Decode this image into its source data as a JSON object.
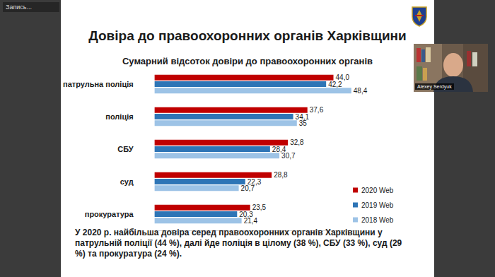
{
  "chart_data": {
    "type": "bar",
    "orientation": "horizontal",
    "title": "Довіра до правоохоронних органів Харківщини",
    "subtitle": "Сумарний відсоток довіри до правоохоронних органів",
    "annotations": [
      "У 2020 р. найбільша довіра серед правоохоронних органів Харківщини у патрульній поліції (44 %), далі йде поліція в цілому (38 %), СБУ (33 %), суд (29 %) та прокуратура (24 %)."
    ],
    "categories": [
      "патрульна поліція",
      "поліція",
      "СБУ",
      "суд",
      "прокуратура"
    ],
    "series": [
      {
        "name": "2020 Web",
        "color": "#c00000",
        "values": [
          44.0,
          37.6,
          32.8,
          28.8,
          23.5
        ],
        "value_labels": [
          "44,0",
          "37,6",
          "32,8",
          "28,8",
          "23,5"
        ]
      },
      {
        "name": "2019 Web",
        "color": "#2e75b6",
        "values": [
          42.2,
          34.1,
          28.4,
          22.3,
          20.3
        ],
        "value_labels": [
          "42,2",
          "34,1",
          "28,4",
          "22,3",
          "20,3"
        ]
      },
      {
        "name": "2018 Web",
        "color": "#9dc3e6",
        "values": [
          48.4,
          35,
          30.7,
          20.7,
          21.4
        ],
        "value_labels": [
          "48,4",
          "35",
          "30,7",
          "20,7",
          "21,4"
        ]
      }
    ],
    "xlim": [
      0,
      50
    ],
    "tick_labels": "y",
    "grid": false,
    "legend": "right",
    "data_labels": true
  },
  "screen": {
    "recording": "Запись...",
    "speaker": "Alexey Serdyuk"
  }
}
